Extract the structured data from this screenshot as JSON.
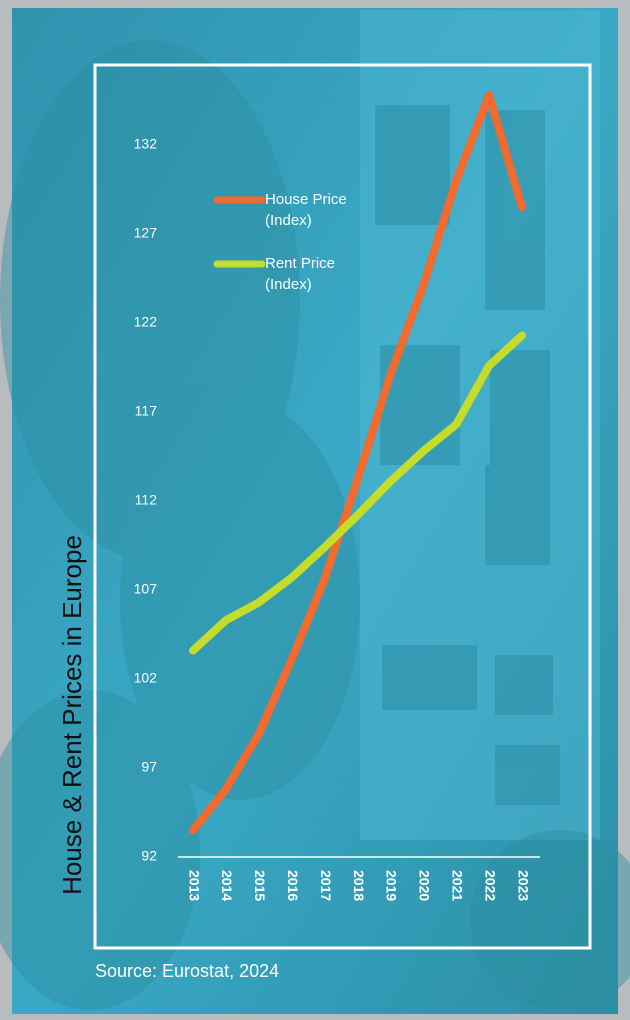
{
  "chart_data": {
    "type": "line",
    "title": "House & Rent Prices in Europe",
    "source": "Source: Eurostat, 2024",
    "categories": [
      "2013",
      "2014",
      "2015",
      "2016",
      "2017",
      "2018",
      "2019",
      "2020",
      "2021",
      "2022",
      "2023"
    ],
    "series": [
      {
        "name": "House Price (Index)",
        "color": "#f26a2e",
        "values": [
          93.5,
          95.8,
          98.9,
          103.1,
          107.6,
          113.2,
          119.1,
          124.1,
          130.0,
          134.8,
          128.5
        ]
      },
      {
        "name": "Rent Price (Index)",
        "color": "#c5dc2a",
        "values": [
          103.6,
          105.3,
          106.3,
          107.7,
          109.4,
          111.2,
          113.1,
          114.8,
          116.3,
          119.6,
          121.3
        ]
      }
    ],
    "ylim": [
      92,
      136
    ],
    "yticks": [
      92,
      97,
      102,
      107,
      112,
      117,
      122,
      127,
      132
    ]
  }
}
